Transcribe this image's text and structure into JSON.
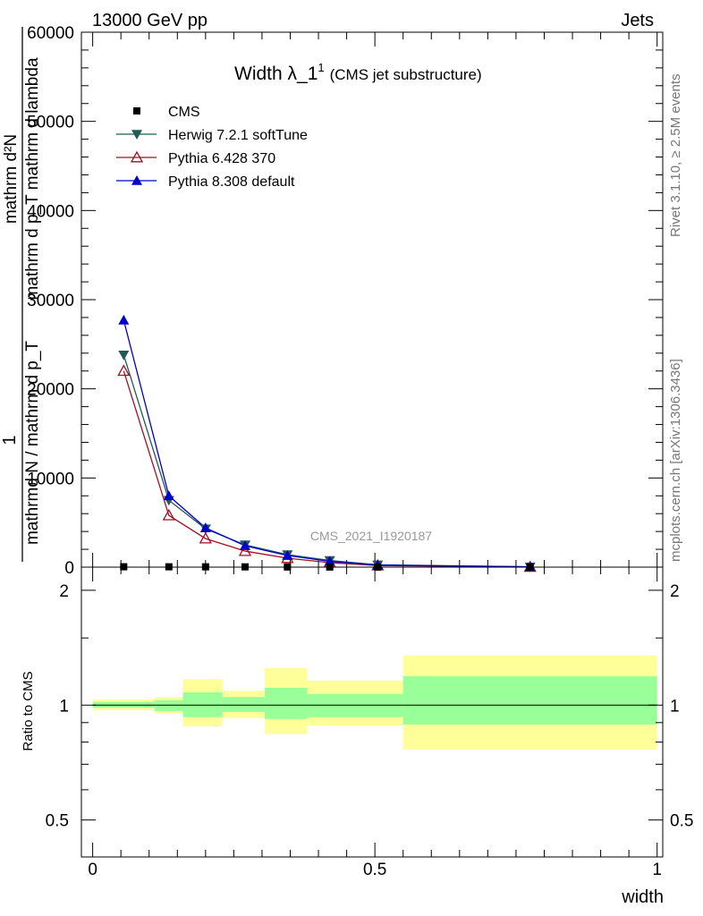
{
  "header": {
    "left": "13000 GeV pp",
    "right": "Jets"
  },
  "side_text": {
    "rivet": "Rivet 3.1.10, ≥ 2.5M events",
    "mcplots": "mcplots.cern.ch [arXiv:1306.3436]"
  },
  "chart_data": [
    {
      "type": "line",
      "title_main": "Width λ_1",
      "title_sup": "1",
      "title_note": "(CMS jet substructure)",
      "watermark": "CMS_2021_I1920187",
      "ylabel": {
        "numerator": "mathrm d²N",
        "denominator": "mathrm d p_T mathrm d lambda",
        "one": "1",
        "norm": "mathrmd N / mathrm d p_T"
      },
      "xlim": [
        -0.02,
        1.01
      ],
      "ylim": [
        0,
        60000
      ],
      "yticks": [
        0,
        10000,
        20000,
        30000,
        40000,
        50000,
        60000
      ],
      "ytick_labels": [
        "0",
        "10000",
        "20000",
        "30000",
        "40000",
        "50000",
        "60000"
      ],
      "legend": [
        {
          "label": "CMS",
          "color": "#000000",
          "marker": "square"
        },
        {
          "label": "Herwig 7.2.1 softTune",
          "color": "#225a5a",
          "marker": "triangle-down"
        },
        {
          "label": "Pythia 6.428 370",
          "color": "#a01020",
          "marker": "triangle-up-open"
        },
        {
          "label": "Pythia 8.308 default",
          "color": "#0000cc",
          "marker": "triangle-up"
        }
      ],
      "legend_position": "top-left",
      "cms_points": {
        "x": [
          0.055,
          0.135,
          0.2,
          0.27,
          0.345,
          0.42,
          0.505,
          0.775
        ],
        "y": [
          40,
          38,
          35,
          30,
          20,
          12,
          8,
          2
        ]
      },
      "series": [
        {
          "name": "Herwig 7.2.1 softTune",
          "color": "#225a5a",
          "marker": "triangle-down",
          "x": [
            0.055,
            0.135,
            0.2,
            0.27,
            0.345,
            0.42,
            0.505,
            0.775
          ],
          "y": [
            23800,
            7500,
            4300,
            2500,
            1400,
            750,
            260,
            30
          ]
        },
        {
          "name": "Pythia 6.428 370",
          "color": "#a01020",
          "marker": "triangle-up-open",
          "x": [
            0.055,
            0.135,
            0.2,
            0.27,
            0.345,
            0.42,
            0.505,
            0.775
          ],
          "y": [
            22000,
            5800,
            3200,
            1800,
            1000,
            500,
            180,
            20
          ]
        },
        {
          "name": "Pythia 8.308 default",
          "color": "#0000cc",
          "marker": "triangle-up",
          "x": [
            0.055,
            0.135,
            0.2,
            0.27,
            0.345,
            0.42,
            0.505,
            0.775
          ],
          "y": [
            27700,
            8000,
            4400,
            2400,
            1300,
            650,
            230,
            30
          ]
        }
      ]
    },
    {
      "type": "area",
      "ylabel": "Ratio to CMS",
      "xlabel": "width",
      "xlim": [
        -0.02,
        1.01
      ],
      "ylim": [
        0.4,
        2.3
      ],
      "log_y": true,
      "yticks": [
        0.5,
        1,
        2
      ],
      "ytick_labels": [
        "0.5",
        "1",
        "2"
      ],
      "xticks": [
        0,
        0.5,
        1
      ],
      "xtick_labels": [
        "0",
        "0.5",
        "1"
      ],
      "inner_band_color": "#99ff99",
      "outer_band_color": "#ffff99",
      "bins": [
        {
          "x0": 0.0,
          "x1": 0.11,
          "inner": [
            0.985,
            1.02
          ],
          "outer": [
            0.97,
            1.035
          ]
        },
        {
          "x0": 0.11,
          "x1": 0.16,
          "inner": [
            0.965,
            1.03
          ],
          "outer": [
            0.95,
            1.05
          ]
        },
        {
          "x0": 0.16,
          "x1": 0.23,
          "inner": [
            0.93,
            1.08
          ],
          "outer": [
            0.88,
            1.17
          ]
        },
        {
          "x0": 0.23,
          "x1": 0.305,
          "inner": [
            0.96,
            1.05
          ],
          "outer": [
            0.925,
            1.09
          ]
        },
        {
          "x0": 0.305,
          "x1": 0.38,
          "inner": [
            0.92,
            1.11
          ],
          "outer": [
            0.84,
            1.25
          ]
        },
        {
          "x0": 0.38,
          "x1": 0.55,
          "inner": [
            0.93,
            1.07
          ],
          "outer": [
            0.885,
            1.16
          ]
        },
        {
          "x0": 0.55,
          "x1": 1.0,
          "inner": [
            0.89,
            1.19
          ],
          "outer": [
            0.765,
            1.35
          ]
        }
      ]
    }
  ]
}
